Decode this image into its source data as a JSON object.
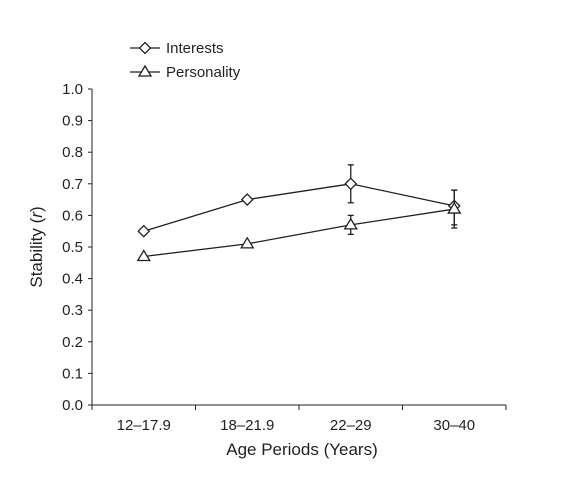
{
  "chart_data": {
    "type": "line",
    "xlabel": "Age Periods (Years)",
    "ylabel_prefix": "Stability (",
    "ylabel_var": "r",
    "ylabel_suffix": ")",
    "categories": [
      "12–17.9",
      "18–21.9",
      "22–29",
      "30–40"
    ],
    "ylim": [
      0,
      1
    ],
    "yticks": [
      "0.0",
      "0.1",
      "0.2",
      "0.3",
      "0.4",
      "0.5",
      "0.6",
      "0.7",
      "0.8",
      "0.9",
      "1.0"
    ],
    "grid": false,
    "legend_position": "top-left",
    "series": [
      {
        "name": "Interests",
        "marker": "diamond",
        "values": [
          0.55,
          0.65,
          0.7,
          0.63
        ],
        "error_low": [
          0.54,
          0.64,
          0.64,
          0.57
        ],
        "error_high": [
          0.56,
          0.66,
          0.76,
          0.68
        ]
      },
      {
        "name": "Personality",
        "marker": "triangle",
        "values": [
          0.47,
          0.51,
          0.57,
          0.62
        ],
        "error_low": [
          0.46,
          0.5,
          0.54,
          0.56
        ],
        "error_high": [
          0.48,
          0.52,
          0.6,
          0.68
        ]
      }
    ],
    "colors": {
      "line": "#231f20",
      "marker_fill": "#ffffff"
    }
  }
}
